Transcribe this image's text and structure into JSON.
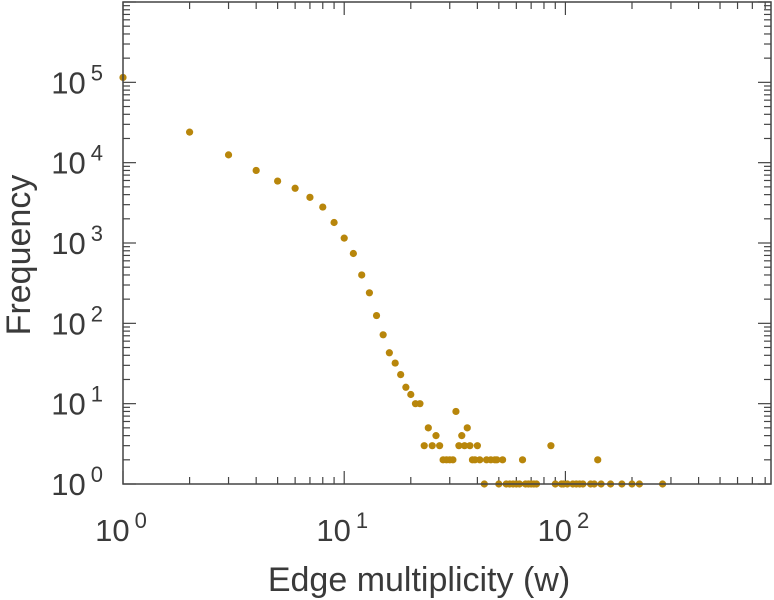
{
  "chart_data": {
    "type": "scatter",
    "title": "",
    "xlabel": "Edge multiplicity (w)",
    "ylabel": "Frequency",
    "xscale": "log",
    "yscale": "log",
    "xlim": [
      1,
      850
    ],
    "ylim": [
      1,
      1000000
    ],
    "xticks": [
      {
        "base": "10",
        "exp": "0",
        "value": 1
      },
      {
        "base": "10",
        "exp": "1",
        "value": 10
      },
      {
        "base": "10",
        "exp": "2",
        "value": 100
      }
    ],
    "yticks": [
      {
        "base": "10",
        "exp": "0",
        "value": 1
      },
      {
        "base": "10",
        "exp": "1",
        "value": 10
      },
      {
        "base": "10",
        "exp": "2",
        "value": 100
      },
      {
        "base": "10",
        "exp": "3",
        "value": 1000
      },
      {
        "base": "10",
        "exp": "4",
        "value": 10000
      },
      {
        "base": "10",
        "exp": "5",
        "value": 100000
      }
    ],
    "grid": false,
    "legend": "none",
    "marker_color": "#b8860b",
    "series": [
      {
        "points": [
          [
            1,
            115000
          ],
          [
            2,
            24000
          ],
          [
            3,
            12500
          ],
          [
            4,
            8000
          ],
          [
            5,
            5900
          ],
          [
            6,
            4800
          ],
          [
            7,
            3700
          ],
          [
            8,
            2800
          ],
          [
            9,
            1800
          ],
          [
            10,
            1150
          ],
          [
            11,
            740
          ],
          [
            12,
            400
          ],
          [
            13,
            240
          ],
          [
            14,
            125
          ],
          [
            15,
            72
          ],
          [
            16,
            43
          ],
          [
            17,
            32
          ],
          [
            18,
            23
          ],
          [
            19,
            16
          ],
          [
            20,
            13
          ],
          [
            21,
            10
          ],
          [
            22,
            10
          ],
          [
            23,
            3
          ],
          [
            24,
            5
          ],
          [
            25,
            3
          ],
          [
            26,
            4
          ],
          [
            27,
            3
          ],
          [
            28,
            2
          ],
          [
            29,
            2
          ],
          [
            30,
            2
          ],
          [
            31,
            2
          ],
          [
            32,
            8
          ],
          [
            33,
            3
          ],
          [
            34,
            4
          ],
          [
            35,
            3
          ],
          [
            36,
            5
          ],
          [
            37,
            3
          ],
          [
            38,
            2
          ],
          [
            39,
            2
          ],
          [
            40,
            3
          ],
          [
            41,
            2
          ],
          [
            43,
            1
          ],
          [
            44,
            2
          ],
          [
            46,
            2
          ],
          [
            48,
            2
          ],
          [
            49,
            2
          ],
          [
            50,
            1
          ],
          [
            52,
            2
          ],
          [
            54,
            1
          ],
          [
            56,
            1
          ],
          [
            58,
            1
          ],
          [
            60,
            1
          ],
          [
            62,
            1
          ],
          [
            64,
            2
          ],
          [
            66,
            1
          ],
          [
            68,
            1
          ],
          [
            70,
            1
          ],
          [
            72,
            1
          ],
          [
            74,
            1
          ],
          [
            86,
            3
          ],
          [
            90,
            1
          ],
          [
            96,
            1
          ],
          [
            98,
            1
          ],
          [
            102,
            1
          ],
          [
            108,
            1
          ],
          [
            112,
            1
          ],
          [
            116,
            1
          ],
          [
            120,
            1
          ],
          [
            130,
            1
          ],
          [
            135,
            1
          ],
          [
            140,
            2
          ],
          [
            145,
            1
          ],
          [
            160,
            1
          ],
          [
            180,
            1
          ],
          [
            200,
            1
          ],
          [
            216,
            1
          ],
          [
            275,
            1
          ]
        ]
      }
    ]
  }
}
